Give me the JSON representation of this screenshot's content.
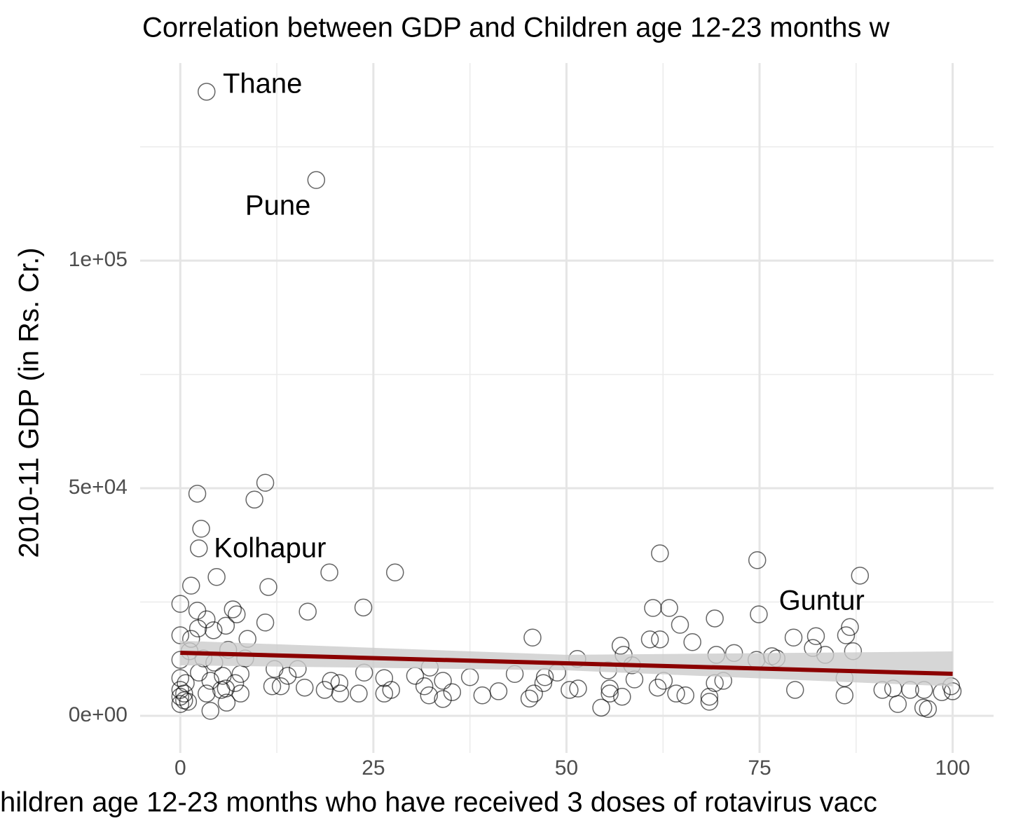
{
  "chart_data": {
    "type": "scatter",
    "title": "Correlation between GDP and Children age 12-23 months w",
    "xlabel": "hildren age 12-23 months who have received 3 doses of rotavirus vacc",
    "ylabel": "2010-11 GDP (in Rs. Cr.)",
    "xlim": [
      -5.2,
      105.3
    ],
    "ylim": [
      -8150,
      143400
    ],
    "xticks": [
      0,
      25,
      50,
      75,
      100
    ],
    "x_minor_gridlines": [
      12.5,
      37.5,
      62.5,
      87.5
    ],
    "yticks": [
      {
        "value": 0,
        "label": "0e+00"
      },
      {
        "value": 50000,
        "label": "5e+04"
      },
      {
        "value": 100000,
        "label": "1e+05"
      }
    ],
    "y_minor_gridlines": [
      25000,
      75000,
      125000
    ],
    "grid": true,
    "x": [
      3.4,
      17.6,
      2.2,
      11.0,
      9.6,
      2.7,
      2.4,
      4.7,
      1.4,
      11.4,
      19.3,
      27.8,
      23.7,
      16.5,
      0,
      2.2,
      6.8,
      7.3,
      11.0,
      3.4,
      2.3,
      5.9,
      4.3,
      0,
      8.7,
      1.4,
      6.2,
      1.2,
      3.0,
      8.4,
      0,
      4.4,
      12.2,
      15.2,
      2.4,
      5.5,
      7.8,
      13.9,
      0,
      0.7,
      3.9,
      7.1,
      11.9,
      13.0,
      16.1,
      18.7,
      20.6,
      19.5,
      0,
      0.5,
      0,
      0.5,
      0,
      1.0,
      3.4,
      5.3,
      7.8,
      3.9,
      6.0,
      5.9,
      20.7,
      23.1,
      26.4,
      27.3,
      23.8,
      26.4,
      30.4,
      31.6,
      32.2,
      34.0,
      34.0,
      35.2,
      37.5,
      39.1,
      41.2,
      32.3,
      43.3,
      45.6,
      45.2,
      45.8,
      47.0,
      47.2,
      48.8,
      50.4,
      51.5,
      51.4,
      54.5,
      55.6,
      55.6,
      55.4,
      57.0,
      57.4,
      57.2,
      58.5,
      58.8,
      60.8,
      61.2,
      62.1,
      62.1,
      63.3,
      61.8,
      62.6,
      64.2,
      65.4,
      64.7,
      66.3,
      68.5,
      68.5,
      69.2,
      70.3,
      69.2,
      69.4,
      71.7,
      74.7,
      74.9,
      74.6,
      76.6,
      77.2,
      79.4,
      79.6,
      81.9,
      82.3,
      83.5,
      86.0,
      86.0,
      86.2,
      86.7,
      87.1,
      88.0,
      90.9,
      92.3,
      92.9,
      94.5,
      96.2,
      96.8,
      96.3,
      98.6,
      99.8,
      100
    ],
    "series": [
      {
        "color": "#000000",
        "values": [
          137100,
          117700,
          48800,
          51200,
          47500,
          41100,
          36800,
          30500,
          28600,
          28300,
          31500,
          31500,
          23800,
          22900,
          24600,
          23100,
          23400,
          22300,
          20500,
          21200,
          19200,
          19800,
          18800,
          17700,
          16900,
          16900,
          14500,
          14200,
          12600,
          12600,
          12300,
          11700,
          10300,
          10300,
          9500,
          8800,
          9200,
          8800,
          8300,
          7200,
          7700,
          7200,
          6500,
          6500,
          6200,
          5700,
          7200,
          7700,
          5700,
          4900,
          4200,
          3400,
          2600,
          3100,
          4900,
          5700,
          4900,
          1100,
          2900,
          6000,
          4900,
          4900,
          4900,
          5700,
          9500,
          8300,
          8800,
          6500,
          4500,
          3700,
          7700,
          5200,
          8500,
          4500,
          5400,
          10600,
          9200,
          17200,
          3800,
          4900,
          7200,
          8500,
          9500,
          5700,
          6000,
          12500,
          1800,
          6000,
          4900,
          10000,
          15400,
          13400,
          4200,
          11100,
          8000,
          16800,
          23700,
          35700,
          16800,
          23700,
          6200,
          7700,
          4900,
          4500,
          20000,
          16200,
          4200,
          3100,
          7200,
          7700,
          21400,
          13400,
          13800,
          34200,
          22300,
          12300,
          13100,
          12600,
          17200,
          5700,
          14900,
          17500,
          13400,
          8300,
          4500,
          17700,
          19500,
          14200,
          30800,
          5700,
          6000,
          2600,
          5700,
          1800,
          1500,
          5700,
          5200,
          6500,
          5400
        ]
      }
    ],
    "trend": {
      "x": [
        0,
        50,
        100
      ],
      "values": [
        13850,
        11540,
        9230
      ],
      "lower": [
        11100,
        10000,
        6460
      ],
      "upper": [
        16500,
        13400,
        14150
      ],
      "color": "#8b0000",
      "band_color": "#cccccc"
    },
    "annotations": [
      {
        "text": "Thane",
        "x": 5.5,
        "y": 138460
      },
      {
        "text": "Pune",
        "x": 8.4,
        "y": 111700
      },
      {
        "text": "Kolhapur",
        "x": 4.35,
        "y": 36460
      },
      {
        "text": "Guntur",
        "x": 77.5,
        "y": 24920
      }
    ]
  }
}
